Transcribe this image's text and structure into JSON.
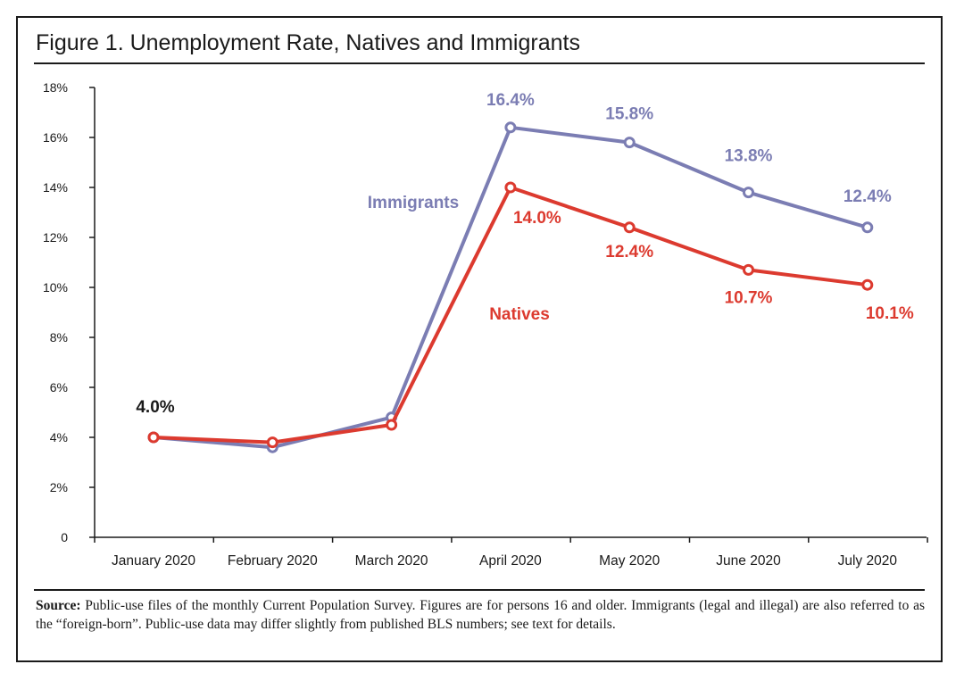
{
  "title": "Figure 1. Unemployment Rate, Natives and Immigrants",
  "source": {
    "label": "Source:",
    "text": "Public-use files of the monthly Current Population Survey.  Figures are for persons 16 and older.  Immigrants (legal and illegal) are also referred to as the “foreign-born”. Public-use data may differ slightly from published BLS numbers; see text for details."
  },
  "colors": {
    "immigrants": "#7b7db3",
    "natives": "#dc3a2f",
    "axis": "#1a1a1a"
  },
  "chart_data": {
    "type": "line",
    "categories": [
      "January 2020",
      "February 2020",
      "March 2020",
      "April 2020",
      "May 2020",
      "June 2020",
      "July 2020"
    ],
    "ylim": [
      0,
      18
    ],
    "yticks": [
      0,
      2,
      4,
      6,
      8,
      10,
      12,
      14,
      16,
      18
    ],
    "ytick_labels": [
      "0",
      "2%",
      "4%",
      "6%",
      "8%",
      "10%",
      "12%",
      "14%",
      "16%",
      "18%"
    ],
    "series": [
      {
        "name": "Immigrants",
        "color": "#7b7db3",
        "values": [
          4.0,
          3.6,
          4.8,
          16.4,
          15.8,
          13.8,
          12.4
        ],
        "point_labels": [
          "",
          "",
          "",
          "16.4%",
          "15.8%",
          "13.8%",
          "12.4%"
        ]
      },
      {
        "name": "Natives",
        "color": "#dc3a2f",
        "values": [
          4.0,
          3.8,
          4.5,
          14.0,
          12.4,
          10.7,
          10.1
        ],
        "point_labels": [
          "",
          "",
          "",
          "14.0%",
          "12.4%",
          "10.7%",
          "10.1%"
        ]
      }
    ],
    "annotations": [
      {
        "text": "4.0%",
        "category": "January 2020",
        "value": 4.0,
        "color": "#1a1a1a"
      }
    ]
  }
}
